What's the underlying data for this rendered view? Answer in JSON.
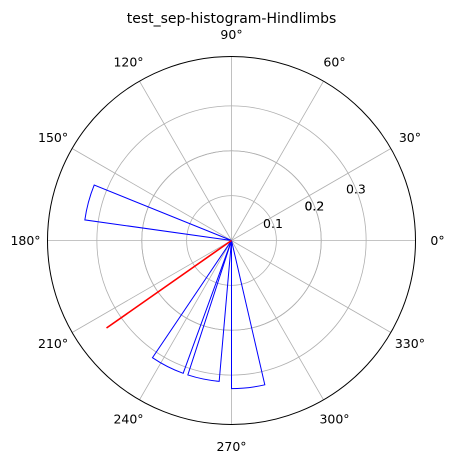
{
  "chart_data": {
    "type": "polar-histogram",
    "title": "test_sep-histogram-Hindlimbs",
    "angle_ticks": [
      {
        "deg": 0,
        "label": "0°"
      },
      {
        "deg": 30,
        "label": "30°"
      },
      {
        "deg": 60,
        "label": "60°"
      },
      {
        "deg": 90,
        "label": "90°"
      },
      {
        "deg": 120,
        "label": "120°"
      },
      {
        "deg": 150,
        "label": "150°"
      },
      {
        "deg": 180,
        "label": "180°"
      },
      {
        "deg": 210,
        "label": "210°"
      },
      {
        "deg": 240,
        "label": "240°"
      },
      {
        "deg": 270,
        "label": "270°"
      },
      {
        "deg": 300,
        "label": "300°"
      },
      {
        "deg": 330,
        "label": "330°"
      }
    ],
    "radial_ticks": [
      {
        "value": 0.1,
        "label": "0.1"
      },
      {
        "value": 0.2,
        "label": "0.2"
      },
      {
        "value": 0.2,
        "label": "0.2"
      },
      {
        "value": 0.3,
        "label": "0.3"
      }
    ],
    "rlim": [
      0,
      0.41
    ],
    "grid": true,
    "bars": [
      {
        "start_deg": 158,
        "end_deg": 172,
        "value": 0.33
      },
      {
        "start_deg": 236,
        "end_deg": 250,
        "value": 0.315
      },
      {
        "start_deg": 252,
        "end_deg": 265,
        "value": 0.315
      },
      {
        "start_deg": 270,
        "end_deg": 283,
        "value": 0.33
      }
    ],
    "bar_color": "#0000ff",
    "mean_vector": {
      "angle_deg": 215,
      "length": 0.34,
      "color": "#ff0000"
    }
  }
}
